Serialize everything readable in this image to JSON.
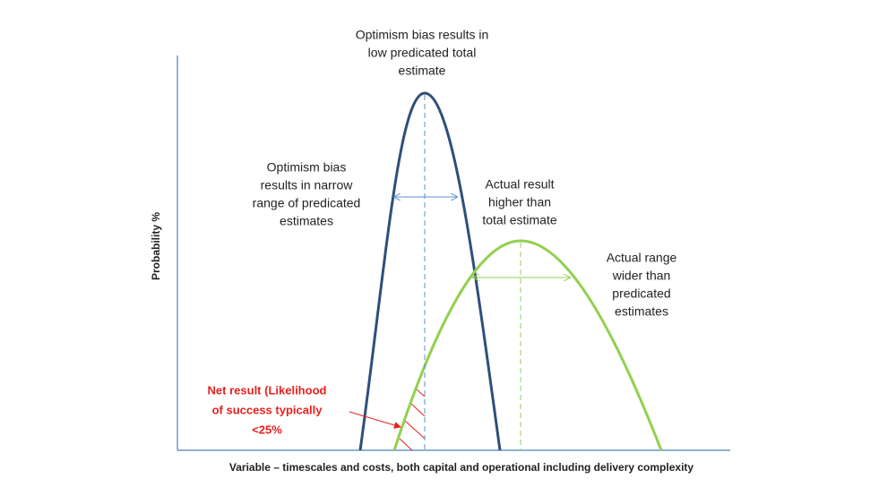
{
  "axes": {
    "y_label": "Probability %",
    "x_label": "Variable – timescales and costs, both capital and operational including delivery complexity"
  },
  "annotations": [
    {
      "lines": [
        "Optimism bias results in",
        "low predicated total",
        "estimate"
      ]
    },
    {
      "lines": [
        "Optimism bias",
        "results in narrow",
        "range of predicated",
        "estimates"
      ]
    },
    {
      "lines": [
        "Actual result",
        "higher than",
        "total estimate"
      ]
    },
    {
      "lines": [
        "Actual range",
        "wider than",
        "predicated",
        "estimates"
      ]
    },
    {
      "lines": [
        "Net result (Likelihood",
        "of success typically",
        "<25%"
      ]
    }
  ]
}
